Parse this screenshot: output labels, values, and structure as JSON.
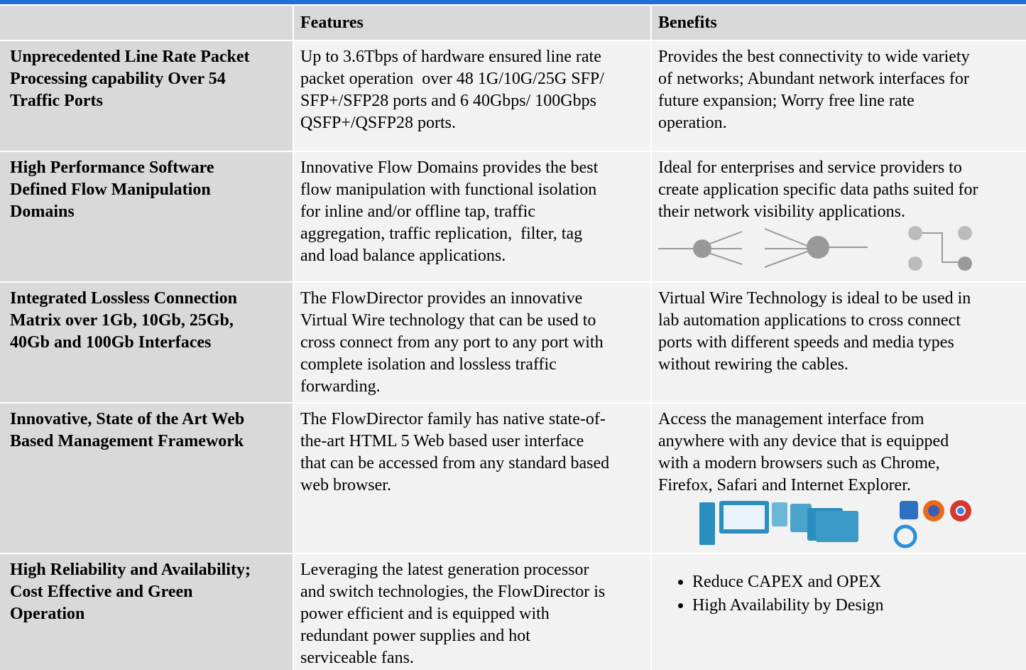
{
  "table": {
    "header": {
      "features": "Features",
      "benefits": "Benefits"
    },
    "rows": [
      {
        "title": [
          "Unprecedented Line Rate Packet",
          "Processing capability Over 54",
          "Traffic Ports"
        ],
        "features": [
          "Up to 3.6Tbps of hardware ensured line rate",
          "packet operation  over 48 1G/10G/25G SFP/",
          "SFP+/SFP28 ports and 6 40Gbps/ 100Gbps",
          "QSFP+/QSFP28 ports."
        ],
        "benefits": [
          "Provides the best connectivity to wide variety",
          "of networks; Abundant network interfaces for",
          "future expansion; Worry free line rate",
          "operation."
        ]
      },
      {
        "title": [
          "High Performance Software",
          "Defined Flow Manipulation",
          "Domains"
        ],
        "features": [
          "Innovative Flow Domains provides the best",
          "flow manipulation with functional isolation",
          "for inline and/or offline tap, traffic",
          "aggregation, traffic replication,  filter, tag",
          "and load balance applications."
        ],
        "benefits": [
          "Ideal for enterprises and service providers to",
          "create application specific data paths suited for",
          "their network visibility applications."
        ]
      },
      {
        "title": [
          "Integrated Lossless Connection",
          "Matrix over 1Gb, 10Gb, 25Gb,",
          "40Gb and 100Gb Interfaces"
        ],
        "features": [
          "The FlowDirector provides an innovative",
          "Virtual Wire technology that can be used to",
          "cross connect from any port to any port with",
          "complete isolation and lossless traffic",
          "forwarding."
        ],
        "benefits": [
          "Virtual Wire Technology is ideal to be used in",
          "lab automation applications to cross connect",
          "ports with different speeds and media types",
          "without rewiring the cables."
        ]
      },
      {
        "title": [
          "Innovative, State of the Art Web",
          "Based Management Framework"
        ],
        "features": [
          "The FlowDirector family has native state-of-",
          "the-art HTML 5 Web based user interface",
          "that can be accessed from any standard based",
          "web browser."
        ],
        "benefits": [
          "Access the management interface from",
          "anywhere with any device that is equipped",
          "with a modern browsers such as Chrome,",
          "Firefox, Safari and Internet Explorer."
        ]
      },
      {
        "title": [
          "High Reliability and Availability;",
          "Cost Effective and Green",
          "Operation"
        ],
        "features": [
          "Leveraging the latest generation processor",
          "and switch technologies, the FlowDirector is",
          "power efficient and is equipped with",
          "redundant power supplies and hot",
          "serviceable fans."
        ],
        "bullets": [
          "Reduce CAPEX and OPEX",
          "High Availability by Design"
        ]
      }
    ]
  }
}
